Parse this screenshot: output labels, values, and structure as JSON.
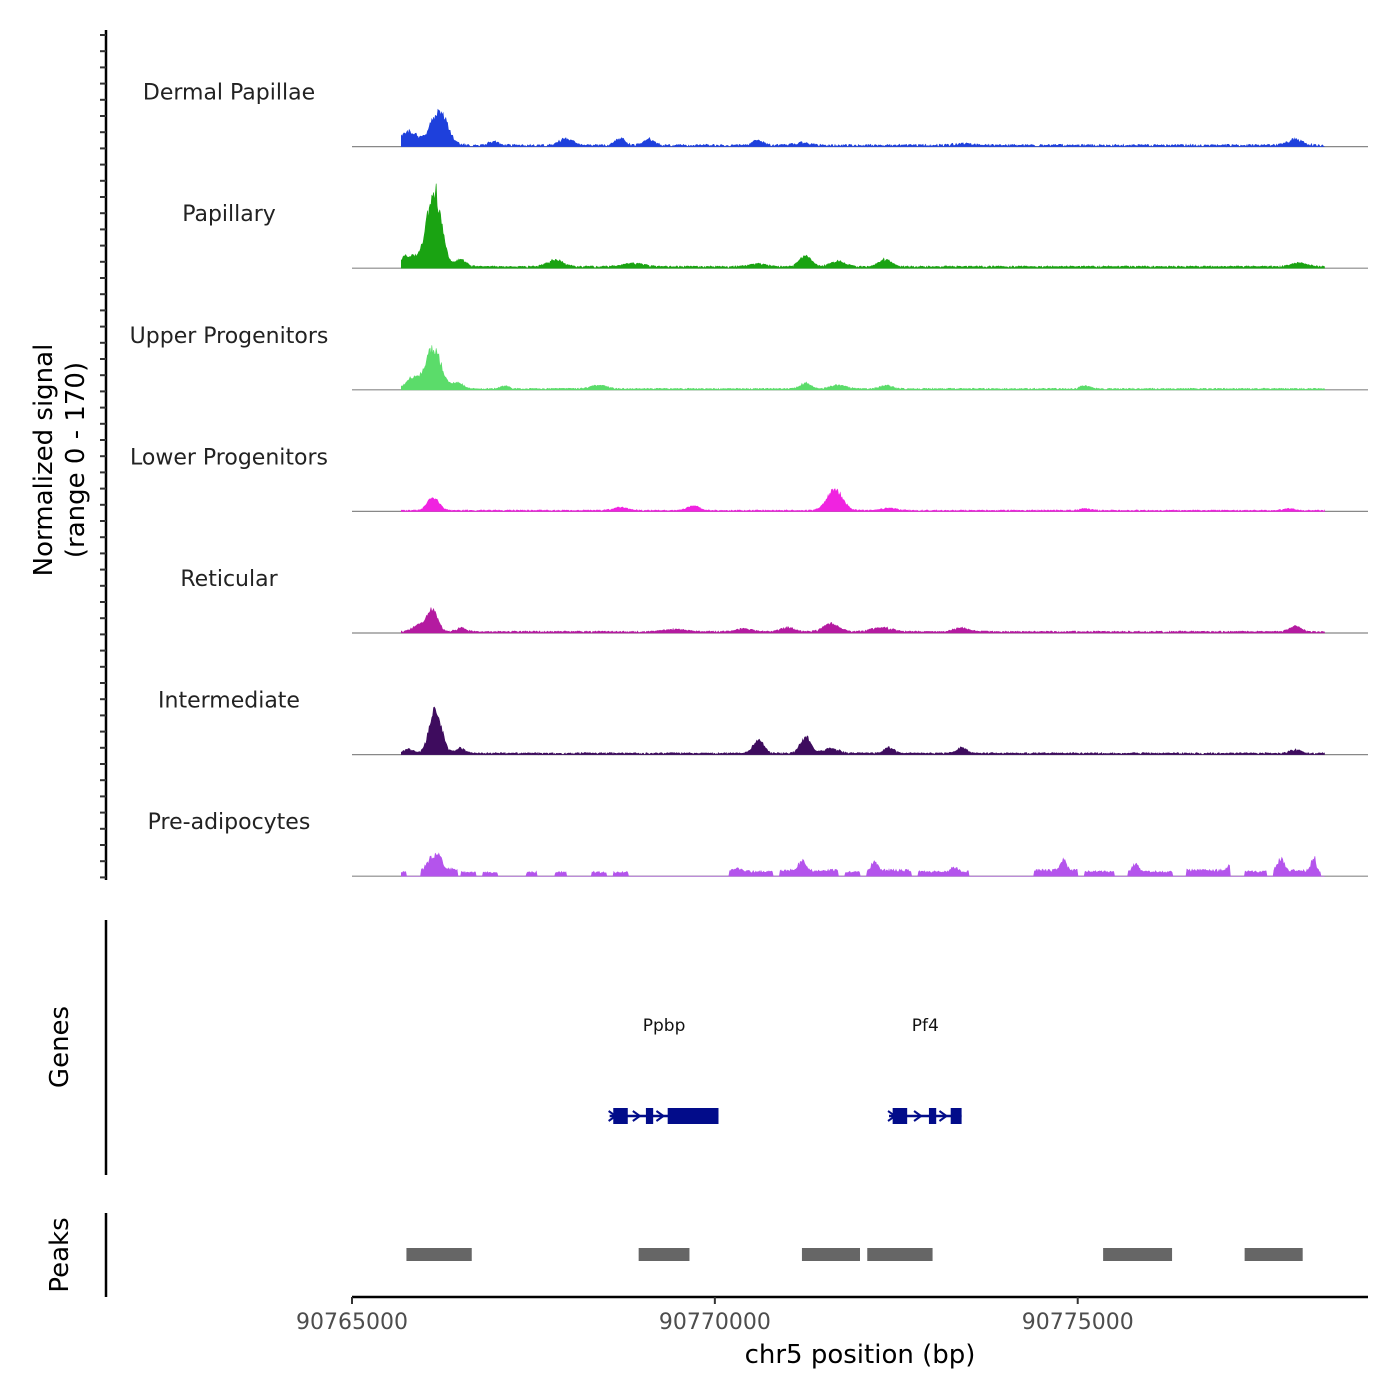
{
  "chart_data": {
    "type": "area",
    "title": "",
    "ylabel_line1": "Normalized signal",
    "ylabel_line2": "(range 0 - 170)",
    "xlabel": "chr5 position (bp)",
    "xlim": [
      90765000,
      90779000
    ],
    "ylim": [
      0,
      170
    ],
    "x_ticks": [
      90765000,
      90770000,
      90775000
    ],
    "x_tick_labels": [
      "90765000",
      "90770000",
      "90775000"
    ],
    "signal_start": 90765680,
    "signal_end": 90778400,
    "tracks": [
      {
        "name": "Dermal Papillae",
        "color": "#1e40dc",
        "base": 1.5,
        "noise": 2.5,
        "dropout": 0.25,
        "peaks": [
          [
            90765780,
            170,
            22
          ],
          [
            90766200,
            170,
            55
          ],
          [
            90766950,
            100,
            6
          ],
          [
            90767900,
            100,
            7
          ],
          [
            90768000,
            100,
            7
          ],
          [
            90768700,
            100,
            11
          ],
          [
            90769100,
            110,
            10
          ],
          [
            90770600,
            100,
            9
          ],
          [
            90771200,
            150,
            4
          ],
          [
            90773400,
            150,
            3
          ],
          [
            90778000,
            150,
            10
          ]
        ]
      },
      {
        "name": "Papillary",
        "color": "#1aa312",
        "base": 2.0,
        "noise": 2.0,
        "dropout": 0.08,
        "peaks": [
          [
            90765780,
            180,
            18
          ],
          [
            90766130,
            140,
            128
          ],
          [
            90766500,
            100,
            12
          ],
          [
            90767800,
            150,
            11
          ],
          [
            90768900,
            200,
            6
          ],
          [
            90770600,
            150,
            5
          ],
          [
            90771250,
            110,
            18
          ],
          [
            90771700,
            150,
            9
          ],
          [
            90772350,
            120,
            12
          ],
          [
            90778050,
            150,
            6
          ]
        ]
      },
      {
        "name": "Upper Progenitors",
        "color": "#5bdc6a",
        "base": 1.2,
        "noise": 1.5,
        "dropout": 0.15,
        "peaks": [
          [
            90765830,
            120,
            18
          ],
          [
            90766120,
            150,
            68
          ],
          [
            90766460,
            100,
            10
          ],
          [
            90767100,
            80,
            5
          ],
          [
            90768400,
            150,
            6
          ],
          [
            90771250,
            100,
            10
          ],
          [
            90771700,
            150,
            6
          ],
          [
            90772350,
            120,
            6
          ],
          [
            90775100,
            100,
            5
          ]
        ]
      },
      {
        "name": "Lower Progenitors",
        "color": "#f023e0",
        "base": 1.0,
        "noise": 1.5,
        "dropout": 0.1,
        "peaks": [
          [
            90766120,
            110,
            22
          ],
          [
            90768700,
            150,
            5
          ],
          [
            90769700,
            110,
            8
          ],
          [
            90771650,
            150,
            35
          ],
          [
            90772400,
            150,
            4
          ],
          [
            90775100,
            110,
            3
          ],
          [
            90777900,
            100,
            3
          ]
        ]
      },
      {
        "name": "Reticular",
        "color": "#b41aa0",
        "base": 1.5,
        "noise": 2.0,
        "dropout": 0.1,
        "peaks": [
          [
            90765900,
            100,
            10
          ],
          [
            90766100,
            110,
            37
          ],
          [
            90766500,
            100,
            6
          ],
          [
            90769450,
            200,
            4
          ],
          [
            90770400,
            150,
            5
          ],
          [
            90771000,
            120,
            8
          ],
          [
            90771600,
            150,
            13
          ],
          [
            90772300,
            200,
            7
          ],
          [
            90773400,
            150,
            6
          ],
          [
            90778000,
            110,
            9
          ]
        ]
      },
      {
        "name": "Intermediate",
        "color": "#3e0c5e",
        "base": 1.5,
        "noise": 2.0,
        "dropout": 0.1,
        "peaks": [
          [
            90765780,
            90,
            7
          ],
          [
            90766150,
            120,
            70
          ],
          [
            90766500,
            90,
            9
          ],
          [
            90770600,
            100,
            22
          ],
          [
            90771250,
            100,
            27
          ],
          [
            90771600,
            150,
            8
          ],
          [
            90772400,
            90,
            10
          ],
          [
            90773400,
            90,
            10
          ],
          [
            90778000,
            100,
            6
          ]
        ]
      },
      {
        "name": "Pre-adipocytes",
        "color": "#b454ec",
        "base": 0,
        "noise": 0,
        "dropout": 0,
        "peaks": [
          [
            90766200,
            60,
            26
          ],
          [
            90766100,
            80,
            22
          ],
          [
            90770300,
            100,
            6
          ],
          [
            90771200,
            60,
            20
          ],
          [
            90772200,
            60,
            16
          ],
          [
            90773300,
            60,
            10
          ],
          [
            90774800,
            60,
            18
          ],
          [
            90775800,
            60,
            14
          ],
          [
            90777100,
            60,
            12
          ],
          [
            90777800,
            60,
            24
          ],
          [
            90778250,
            40,
            30
          ]
        ],
        "blocks": [
          [
            90765650,
            90765750,
            7
          ],
          [
            90765950,
            90766450,
            12
          ],
          [
            90766500,
            90766700,
            7
          ],
          [
            90766800,
            90767000,
            7
          ],
          [
            90767400,
            90767550,
            7
          ],
          [
            90767800,
            90767950,
            7
          ],
          [
            90768300,
            90768500,
            7
          ],
          [
            90768600,
            90768800,
            7
          ],
          [
            90770200,
            90770800,
            8
          ],
          [
            90770900,
            90771700,
            10
          ],
          [
            90771800,
            90772000,
            7
          ],
          [
            90772100,
            90772700,
            10
          ],
          [
            90772800,
            90773500,
            8
          ],
          [
            90774400,
            90775000,
            10
          ],
          [
            90775100,
            90775500,
            8
          ],
          [
            90775700,
            90776300,
            8
          ],
          [
            90776500,
            90777100,
            10
          ],
          [
            90777300,
            90777600,
            8
          ],
          [
            90777700,
            90778350,
            10
          ]
        ]
      }
    ],
    "genes_label": "Genes",
    "genes": [
      {
        "name": "Ppbp",
        "start": 90768550,
        "end": 90770050,
        "color": "#020c8a",
        "exons": [
          [
            90768600,
            90768800
          ],
          [
            90769050,
            90769150
          ],
          [
            90769350,
            90770050
          ]
        ]
      },
      {
        "name": "Pf4",
        "start": 90772400,
        "end": 90773400,
        "color": "#020c8a",
        "exons": [
          [
            90772450,
            90772650
          ],
          [
            90772950,
            90773050
          ],
          [
            90773250,
            90773400
          ]
        ]
      }
    ],
    "peaks_label": "Peaks",
    "peak_color": "#666666",
    "peak_regions": [
      [
        90765750,
        90766650
      ],
      [
        90768950,
        90769650
      ],
      [
        90771200,
        90772000
      ],
      [
        90772100,
        90773000
      ],
      [
        90775350,
        90776300
      ],
      [
        90777300,
        90778100
      ]
    ]
  }
}
